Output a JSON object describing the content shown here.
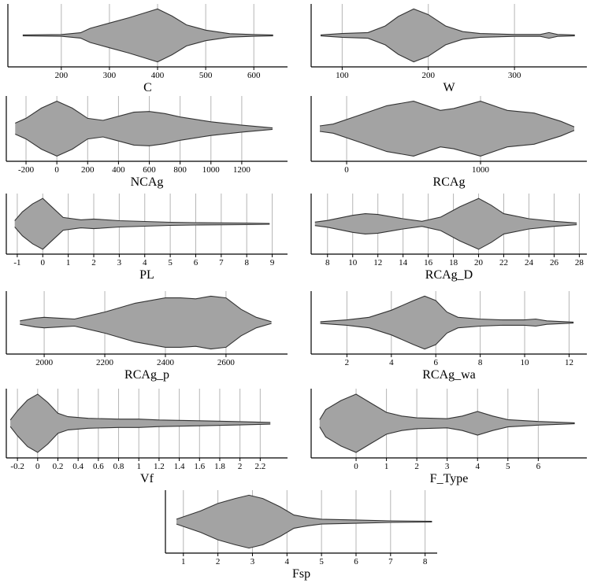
{
  "chart_data": [
    {
      "type": "violin",
      "xlabel": "C",
      "xlim": [
        89,
        670
      ],
      "xticks": [
        200,
        300,
        400,
        500,
        600
      ],
      "x": [
        120,
        200,
        240,
        260,
        300,
        340,
        370,
        400,
        430,
        460,
        500,
        550,
        600,
        640
      ],
      "width": [
        0.5,
        1,
        3,
        8,
        14,
        20,
        25,
        30,
        22,
        12,
        6,
        2,
        1,
        0.5
      ],
      "color": "#a3a3a3"
    },
    {
      "type": "violin",
      "xlabel": "W",
      "xlim": [
        64,
        384
      ],
      "xticks": [
        100,
        200,
        300
      ],
      "x": [
        75,
        100,
        130,
        150,
        165,
        183,
        200,
        220,
        240,
        260,
        300,
        330,
        340,
        350,
        370
      ],
      "width": [
        0.5,
        2,
        3,
        10,
        20,
        28,
        22,
        10,
        4,
        2,
        1,
        1,
        3,
        1,
        0.5
      ],
      "color": "#a3a3a3"
    },
    {
      "type": "violin",
      "xlabel": "NCAg",
      "xlim": [
        -328,
        1497
      ],
      "xticks": [
        -200,
        0,
        200,
        400,
        600,
        800,
        1000,
        1200
      ],
      "x": [
        -270,
        -200,
        -100,
        0,
        100,
        200,
        300,
        400,
        500,
        600,
        700,
        800,
        1000,
        1200,
        1400
      ],
      "width": [
        8,
        15,
        30,
        40,
        30,
        15,
        12,
        18,
        24,
        25,
        22,
        17,
        10,
        5,
        1
      ],
      "color": "#a3a3a3"
    },
    {
      "type": "violin",
      "xlabel": "RCAg",
      "xlim": [
        -265,
        1794
      ],
      "xticks": [
        0,
        1000
      ],
      "x": [
        -200,
        -100,
        100,
        300,
        500,
        700,
        800,
        1000,
        1200,
        1400,
        1600,
        1700
      ],
      "width": [
        3,
        5,
        15,
        25,
        30,
        20,
        22,
        30,
        20,
        17,
        8,
        2
      ],
      "color": "#a3a3a3"
    },
    {
      "type": "violin",
      "xlabel": "PL",
      "xlim": [
        -1.43,
        9.6
      ],
      "xticks": [
        -1,
        0,
        1,
        2,
        3,
        4,
        5,
        6,
        7,
        8,
        9
      ],
      "x": [
        -1.1,
        -0.8,
        -0.4,
        0,
        0.4,
        0.8,
        1.5,
        2,
        3,
        4,
        5,
        6,
        8,
        8.9
      ],
      "width": [
        4,
        15,
        25,
        32,
        20,
        8,
        5,
        6,
        4,
        3,
        2,
        1.5,
        1,
        0.5
      ],
      "color": "#a3a3a3"
    },
    {
      "type": "violin",
      "xlabel": "RCAg_D",
      "xlim": [
        6.7,
        28.6
      ],
      "xticks": [
        8,
        10,
        12,
        14,
        16,
        18,
        20,
        22,
        24,
        26,
        28
      ],
      "x": [
        7,
        8,
        10,
        11,
        12,
        14,
        15.5,
        17,
        18.5,
        20,
        21,
        22,
        24,
        26,
        27.8
      ],
      "width": [
        2,
        4,
        10,
        12,
        11,
        6,
        3,
        8,
        20,
        30,
        22,
        12,
        6,
        3,
        1
      ],
      "color": "#a3a3a3"
    },
    {
      "type": "violin",
      "xlabel": "RCAg_p",
      "xlim": [
        1875,
        2803
      ],
      "xticks": [
        2000,
        2200,
        2400,
        2600
      ],
      "x": [
        1920,
        1970,
        2000,
        2050,
        2100,
        2200,
        2300,
        2400,
        2450,
        2500,
        2550,
        2600,
        2650,
        2700,
        2750
      ],
      "width": [
        2,
        5,
        6,
        5,
        4,
        12,
        22,
        28,
        28,
        27,
        30,
        28,
        15,
        6,
        1
      ],
      "color": "#a3a3a3"
    },
    {
      "type": "violin",
      "xlabel": "RCAg_wa",
      "xlim": [
        0.39,
        12.8
      ],
      "xticks": [
        2,
        4,
        6,
        8,
        10,
        12
      ],
      "x": [
        0.8,
        2,
        3,
        4,
        5,
        5.5,
        6,
        6.5,
        7,
        8,
        9,
        10,
        10.5,
        11,
        12.2
      ],
      "width": [
        1,
        3,
        6,
        14,
        25,
        30,
        25,
        12,
        6,
        4,
        3,
        3,
        4,
        2,
        0.5
      ],
      "color": "#a3a3a3"
    },
    {
      "type": "violin",
      "xlabel": "Vf",
      "xlim": [
        -0.31,
        2.47
      ],
      "xticks": [
        -0.2,
        0,
        0.2,
        0.4,
        0.6,
        0.8,
        1,
        1.2,
        1.4,
        1.6,
        1.8,
        2,
        2.2
      ],
      "x": [
        -0.27,
        -0.2,
        -0.1,
        0,
        0.1,
        0.2,
        0.3,
        0.5,
        0.8,
        1.0,
        1.2,
        1.6,
        2,
        2.3
      ],
      "width": [
        4,
        15,
        28,
        35,
        25,
        12,
        8,
        6,
        5,
        5,
        4,
        3,
        2,
        1
      ],
      "color": "#a3a3a3"
    },
    {
      "type": "violin",
      "xlabel": "F_Type",
      "xlim": [
        -1.48,
        7.6
      ],
      "xticks": [
        0,
        1,
        2,
        3,
        4,
        5,
        6
      ],
      "x": [
        -1.2,
        -1,
        -0.5,
        0,
        0.5,
        1,
        1.5,
        2,
        3,
        3.5,
        4,
        4.5,
        5,
        6,
        7.2
      ],
      "width": [
        4,
        15,
        25,
        32,
        22,
        12,
        8,
        6,
        5,
        8,
        13,
        8,
        4,
        2,
        0.5
      ],
      "color": "#a3a3a3"
    },
    {
      "type": "violin",
      "xlabel": "Fsp",
      "xlim": [
        0.48,
        8.35
      ],
      "xticks": [
        1,
        2,
        3,
        4,
        5,
        6,
        7,
        8
      ],
      "x": [
        0.8,
        1.5,
        2,
        2.5,
        2.9,
        3.3,
        3.8,
        4.2,
        4.6,
        5,
        6,
        7,
        8.2
      ],
      "width": [
        3,
        13,
        22,
        28,
        32,
        28,
        18,
        8,
        5,
        3,
        2,
        1,
        0.5
      ],
      "color": "#a3a3a3"
    }
  ]
}
